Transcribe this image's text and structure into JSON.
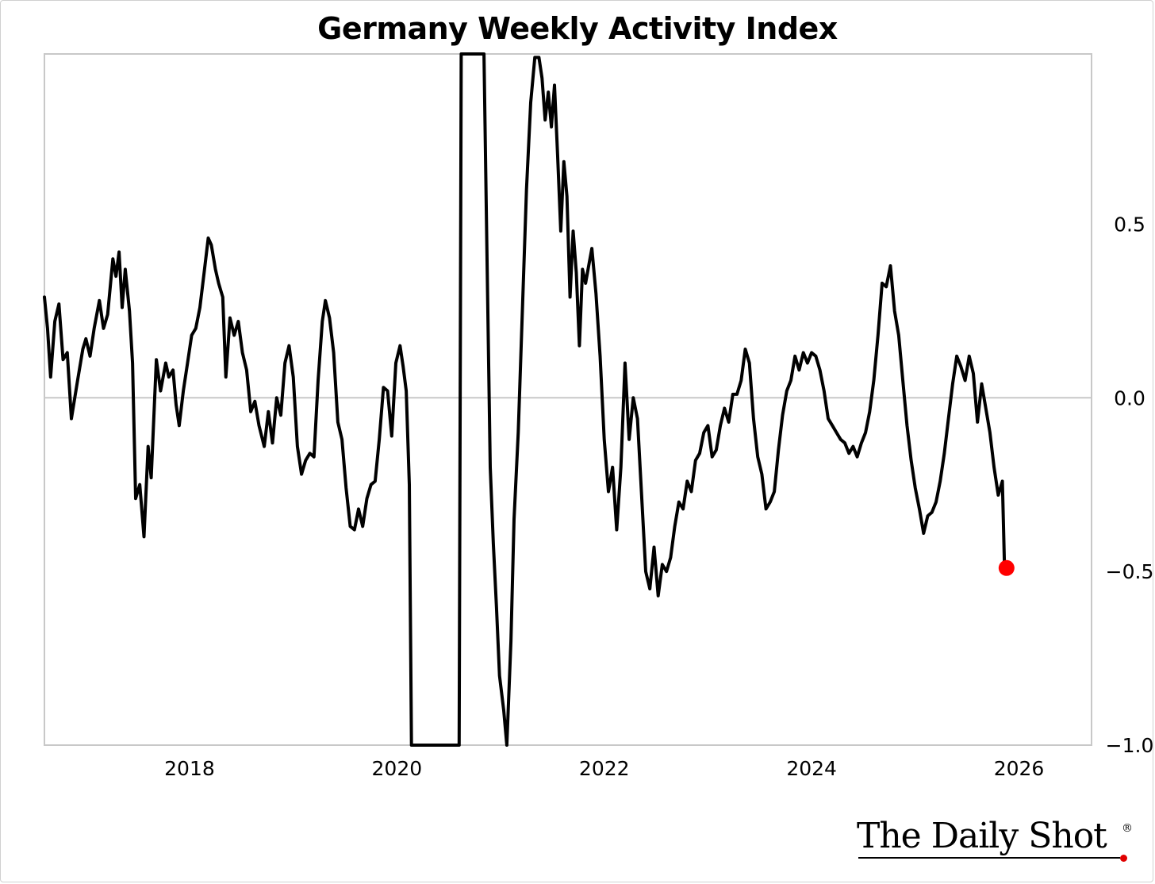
{
  "chart_data": {
    "type": "line",
    "title": "Germany Weekly Activity Index",
    "xlabel": "",
    "ylabel": "",
    "xlim": [
      2016.6,
      2026.7
    ],
    "ylim": [
      -1.0,
      1.0
    ],
    "x_ticks": [
      2018,
      2020,
      2022,
      2024,
      2026
    ],
    "x_tick_labels": [
      "2018",
      "2020",
      "2022",
      "2024",
      "2026"
    ],
    "y_ticks": [
      0.5,
      0.0,
      -0.5,
      -1.0
    ],
    "y_tick_labels": [
      "0.5",
      "0.0",
      "−0.5",
      "−1.0"
    ],
    "y_axis_side": "right",
    "zero_line": true,
    "grid": false,
    "line_color": "#000000",
    "last_point_marker_color": "#ff0000",
    "series": [
      {
        "points": [
          [
            2016.6,
            0.29
          ],
          [
            2016.63,
            0.2
          ],
          [
            2016.66,
            0.06
          ],
          [
            2016.7,
            0.22
          ],
          [
            2016.74,
            0.27
          ],
          [
            2016.78,
            0.11
          ],
          [
            2016.82,
            0.13
          ],
          [
            2016.86,
            -0.06
          ],
          [
            2016.92,
            0.05
          ],
          [
            2016.97,
            0.14
          ],
          [
            2017.0,
            0.17
          ],
          [
            2017.04,
            0.12
          ],
          [
            2017.08,
            0.2
          ],
          [
            2017.13,
            0.28
          ],
          [
            2017.17,
            0.2
          ],
          [
            2017.21,
            0.24
          ],
          [
            2017.26,
            0.4
          ],
          [
            2017.29,
            0.35
          ],
          [
            2017.32,
            0.42
          ],
          [
            2017.35,
            0.26
          ],
          [
            2017.38,
            0.37
          ],
          [
            2017.42,
            0.25
          ],
          [
            2017.45,
            0.1
          ],
          [
            2017.48,
            -0.29
          ],
          [
            2017.52,
            -0.25
          ],
          [
            2017.56,
            -0.4
          ],
          [
            2017.6,
            -0.14
          ],
          [
            2017.63,
            -0.23
          ],
          [
            2017.68,
            0.11
          ],
          [
            2017.72,
            0.02
          ],
          [
            2017.77,
            0.1
          ],
          [
            2017.8,
            0.06
          ],
          [
            2017.84,
            0.08
          ],
          [
            2017.87,
            -0.02
          ],
          [
            2017.9,
            -0.08
          ],
          [
            2017.94,
            0.02
          ],
          [
            2017.98,
            0.1
          ],
          [
            2018.02,
            0.18
          ],
          [
            2018.06,
            0.2
          ],
          [
            2018.1,
            0.26
          ],
          [
            2018.14,
            0.36
          ],
          [
            2018.18,
            0.46
          ],
          [
            2018.21,
            0.44
          ],
          [
            2018.25,
            0.37
          ],
          [
            2018.28,
            0.33
          ],
          [
            2018.32,
            0.29
          ],
          [
            2018.35,
            0.06
          ],
          [
            2018.39,
            0.23
          ],
          [
            2018.43,
            0.18
          ],
          [
            2018.47,
            0.22
          ],
          [
            2018.51,
            0.13
          ],
          [
            2018.55,
            0.08
          ],
          [
            2018.59,
            -0.04
          ],
          [
            2018.63,
            -0.01
          ],
          [
            2018.67,
            -0.08
          ],
          [
            2018.72,
            -0.14
          ],
          [
            2018.76,
            -0.04
          ],
          [
            2018.8,
            -0.13
          ],
          [
            2018.84,
            0.0
          ],
          [
            2018.88,
            -0.05
          ],
          [
            2018.92,
            0.1
          ],
          [
            2018.96,
            0.15
          ],
          [
            2019.0,
            0.06
          ],
          [
            2019.04,
            -0.14
          ],
          [
            2019.08,
            -0.22
          ],
          [
            2019.12,
            -0.18
          ],
          [
            2019.16,
            -0.16
          ],
          [
            2019.2,
            -0.17
          ],
          [
            2019.24,
            0.05
          ],
          [
            2019.28,
            0.22
          ],
          [
            2019.31,
            0.28
          ],
          [
            2019.35,
            0.23
          ],
          [
            2019.39,
            0.13
          ],
          [
            2019.43,
            -0.07
          ],
          [
            2019.47,
            -0.12
          ],
          [
            2019.51,
            -0.26
          ],
          [
            2019.55,
            -0.37
          ],
          [
            2019.59,
            -0.38
          ],
          [
            2019.63,
            -0.32
          ],
          [
            2019.67,
            -0.37
          ],
          [
            2019.71,
            -0.29
          ],
          [
            2019.75,
            -0.25
          ],
          [
            2019.79,
            -0.24
          ],
          [
            2019.83,
            -0.12
          ],
          [
            2019.87,
            0.03
          ],
          [
            2019.91,
            0.02
          ],
          [
            2019.95,
            -0.11
          ],
          [
            2019.99,
            0.1
          ],
          [
            2020.03,
            0.15
          ],
          [
            2020.06,
            0.09
          ],
          [
            2020.09,
            0.02
          ],
          [
            2020.12,
            -0.25
          ],
          [
            2020.14,
            -1.05
          ],
          [
            2020.6,
            -1.05
          ],
          [
            2020.62,
            1.05
          ],
          [
            2020.84,
            1.05
          ],
          [
            2020.87,
            0.38
          ],
          [
            2020.9,
            -0.2
          ],
          [
            2020.93,
            -0.42
          ],
          [
            2020.96,
            -0.6
          ],
          [
            2020.99,
            -0.8
          ],
          [
            2021.03,
            -0.9
          ],
          [
            2021.06,
            -1.0
          ],
          [
            2021.1,
            -0.7
          ],
          [
            2021.13,
            -0.35
          ],
          [
            2021.17,
            -0.1
          ],
          [
            2021.21,
            0.25
          ],
          [
            2021.25,
            0.6
          ],
          [
            2021.29,
            0.85
          ],
          [
            2021.33,
            0.98
          ],
          [
            2021.37,
            0.98
          ],
          [
            2021.4,
            0.92
          ],
          [
            2021.43,
            0.8
          ],
          [
            2021.46,
            0.88
          ],
          [
            2021.49,
            0.78
          ],
          [
            2021.52,
            0.9
          ],
          [
            2021.55,
            0.7
          ],
          [
            2021.58,
            0.48
          ],
          [
            2021.61,
            0.68
          ],
          [
            2021.64,
            0.58
          ],
          [
            2021.67,
            0.29
          ],
          [
            2021.7,
            0.48
          ],
          [
            2021.73,
            0.36
          ],
          [
            2021.76,
            0.15
          ],
          [
            2021.79,
            0.37
          ],
          [
            2021.82,
            0.33
          ],
          [
            2021.85,
            0.38
          ],
          [
            2021.88,
            0.43
          ],
          [
            2021.92,
            0.3
          ],
          [
            2021.96,
            0.12
          ],
          [
            2022.0,
            -0.12
          ],
          [
            2022.04,
            -0.27
          ],
          [
            2022.08,
            -0.2
          ],
          [
            2022.12,
            -0.38
          ],
          [
            2022.16,
            -0.2
          ],
          [
            2022.2,
            0.1
          ],
          [
            2022.24,
            -0.12
          ],
          [
            2022.28,
            0.0
          ],
          [
            2022.32,
            -0.06
          ],
          [
            2022.36,
            -0.28
          ],
          [
            2022.4,
            -0.5
          ],
          [
            2022.44,
            -0.55
          ],
          [
            2022.48,
            -0.43
          ],
          [
            2022.52,
            -0.57
          ],
          [
            2022.56,
            -0.48
          ],
          [
            2022.6,
            -0.5
          ],
          [
            2022.64,
            -0.46
          ],
          [
            2022.68,
            -0.37
          ],
          [
            2022.72,
            -0.3
          ],
          [
            2022.76,
            -0.32
          ],
          [
            2022.8,
            -0.24
          ],
          [
            2022.84,
            -0.27
          ],
          [
            2022.88,
            -0.18
          ],
          [
            2022.92,
            -0.16
          ],
          [
            2022.96,
            -0.1
          ],
          [
            2023.0,
            -0.08
          ],
          [
            2023.04,
            -0.17
          ],
          [
            2023.08,
            -0.15
          ],
          [
            2023.12,
            -0.08
          ],
          [
            2023.16,
            -0.03
          ],
          [
            2023.2,
            -0.07
          ],
          [
            2023.24,
            0.01
          ],
          [
            2023.28,
            0.01
          ],
          [
            2023.32,
            0.05
          ],
          [
            2023.36,
            0.14
          ],
          [
            2023.4,
            0.1
          ],
          [
            2023.44,
            -0.06
          ],
          [
            2023.48,
            -0.17
          ],
          [
            2023.52,
            -0.22
          ],
          [
            2023.56,
            -0.32
          ],
          [
            2023.6,
            -0.3
          ],
          [
            2023.64,
            -0.27
          ],
          [
            2023.68,
            -0.15
          ],
          [
            2023.72,
            -0.05
          ],
          [
            2023.76,
            0.02
          ],
          [
            2023.8,
            0.05
          ],
          [
            2023.84,
            0.12
          ],
          [
            2023.88,
            0.08
          ],
          [
            2023.92,
            0.13
          ],
          [
            2023.96,
            0.1
          ],
          [
            2024.0,
            0.13
          ],
          [
            2024.04,
            0.12
          ],
          [
            2024.08,
            0.08
          ],
          [
            2024.12,
            0.02
          ],
          [
            2024.16,
            -0.06
          ],
          [
            2024.2,
            -0.08
          ],
          [
            2024.24,
            -0.1
          ],
          [
            2024.28,
            -0.12
          ],
          [
            2024.32,
            -0.13
          ],
          [
            2024.36,
            -0.16
          ],
          [
            2024.4,
            -0.14
          ],
          [
            2024.44,
            -0.17
          ],
          [
            2024.48,
            -0.13
          ],
          [
            2024.52,
            -0.1
          ],
          [
            2024.56,
            -0.04
          ],
          [
            2024.6,
            0.05
          ],
          [
            2024.64,
            0.18
          ],
          [
            2024.68,
            0.33
          ],
          [
            2024.72,
            0.32
          ],
          [
            2024.76,
            0.38
          ],
          [
            2024.8,
            0.25
          ],
          [
            2024.84,
            0.18
          ],
          [
            2024.88,
            0.05
          ],
          [
            2024.92,
            -0.08
          ],
          [
            2024.96,
            -0.18
          ],
          [
            2025.0,
            -0.26
          ],
          [
            2025.04,
            -0.32
          ],
          [
            2025.08,
            -0.39
          ],
          [
            2025.12,
            -0.34
          ],
          [
            2025.16,
            -0.33
          ],
          [
            2025.2,
            -0.3
          ],
          [
            2025.24,
            -0.24
          ],
          [
            2025.28,
            -0.16
          ],
          [
            2025.32,
            -0.06
          ],
          [
            2025.36,
            0.04
          ],
          [
            2025.4,
            0.12
          ],
          [
            2025.44,
            0.09
          ],
          [
            2025.48,
            0.05
          ],
          [
            2025.52,
            0.12
          ],
          [
            2025.56,
            0.07
          ],
          [
            2025.6,
            -0.07
          ],
          [
            2025.64,
            0.04
          ],
          [
            2025.68,
            -0.03
          ],
          [
            2025.72,
            -0.1
          ],
          [
            2025.76,
            -0.2
          ],
          [
            2025.8,
            -0.28
          ],
          [
            2025.84,
            -0.24
          ],
          [
            2025.86,
            -0.48
          ],
          [
            2025.88,
            -0.49
          ]
        ]
      }
    ]
  },
  "branding": {
    "text": "The Daily Shot",
    "registered_mark": "®"
  }
}
